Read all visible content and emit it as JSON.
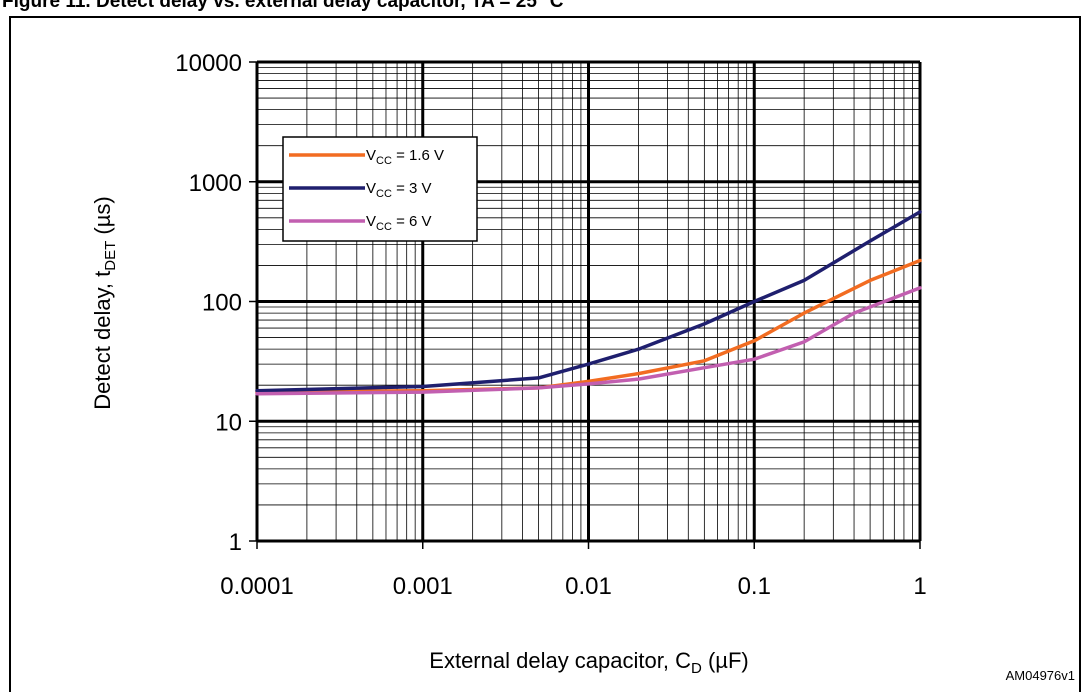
{
  "caption": "Figure 11. Detect delay vs. external delay capacitor, TA = 25 °C",
  "reference_code": "AM04976v1",
  "chart_data": {
    "type": "line",
    "xscale": "log",
    "yscale": "log",
    "xlim": [
      0.0001,
      1
    ],
    "ylim": [
      1,
      10000
    ],
    "x_ticks": [
      0.0001,
      0.001,
      0.01,
      0.1,
      1
    ],
    "x_tick_labels": [
      "0.0001",
      "0.001",
      "0.01",
      "0.1",
      "1"
    ],
    "y_ticks": [
      1,
      10,
      100,
      1000,
      10000
    ],
    "y_tick_labels": [
      "1",
      "10",
      "100",
      "1000",
      "10000"
    ],
    "xlabel": {
      "main": "External delay capacitor, C",
      "sub": "D",
      "unit": " (µF)"
    },
    "ylabel": {
      "main": "Detect delay, t",
      "sub": "DET",
      "unit": " (µs)"
    },
    "grid": true,
    "legend_position": "upper-left",
    "series": [
      {
        "name": {
          "prefix": "V",
          "sub": "CC",
          "suffix": " = 1.6 V"
        },
        "color": "#f26c21",
        "points": [
          [
            0.0001,
            17.5
          ],
          [
            0.001,
            18
          ],
          [
            0.005,
            19
          ],
          [
            0.01,
            21.5
          ],
          [
            0.02,
            25
          ],
          [
            0.05,
            32
          ],
          [
            0.1,
            47
          ],
          [
            0.2,
            80
          ],
          [
            0.5,
            150
          ],
          [
            1,
            220
          ]
        ]
      },
      {
        "name": {
          "prefix": "V",
          "sub": "CC",
          "suffix": " = 3 V"
        },
        "color": "#1f1f6e",
        "points": [
          [
            0.0001,
            18
          ],
          [
            0.001,
            19.5
          ],
          [
            0.005,
            23
          ],
          [
            0.01,
            30
          ],
          [
            0.02,
            40
          ],
          [
            0.05,
            65
          ],
          [
            0.1,
            100
          ],
          [
            0.2,
            150
          ],
          [
            0.5,
            320
          ],
          [
            1,
            560
          ]
        ]
      },
      {
        "name": {
          "prefix": "V",
          "sub": "CC",
          "suffix": " = 6 V"
        },
        "color": "#c25fb0",
        "points": [
          [
            0.0001,
            17
          ],
          [
            0.001,
            17.5
          ],
          [
            0.005,
            19
          ],
          [
            0.01,
            20.5
          ],
          [
            0.02,
            22.5
          ],
          [
            0.05,
            28
          ],
          [
            0.1,
            33
          ],
          [
            0.2,
            46
          ],
          [
            0.4,
            80
          ],
          [
            1,
            130
          ]
        ]
      }
    ]
  }
}
